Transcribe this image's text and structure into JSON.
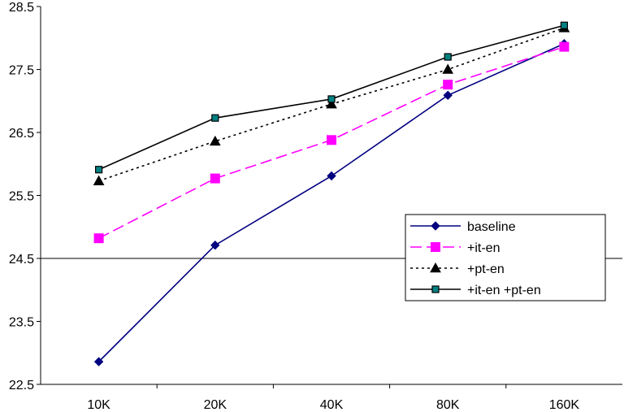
{
  "chart_data": {
    "type": "line",
    "categories": [
      "10K",
      "20K",
      "40K",
      "80K",
      "160K"
    ],
    "ylim": [
      22.5,
      28.5
    ],
    "yticks": [
      "22.5",
      "23.5",
      "24.5",
      "25.5",
      "26.5",
      "27.5",
      "28.5"
    ],
    "ytick_values": [
      22.5,
      23.5,
      24.5,
      25.5,
      26.5,
      27.5,
      28.5
    ],
    "grid": {
      "y": [
        24.5
      ]
    },
    "legend": {
      "position": "right"
    },
    "series": [
      {
        "name": "baseline",
        "values": [
          22.86,
          24.71,
          25.81,
          27.09,
          27.91
        ],
        "color": "#000080",
        "dash": "solid",
        "marker": "diamond"
      },
      {
        "name": "+it-en",
        "values": [
          24.82,
          25.77,
          26.38,
          27.26,
          27.86
        ],
        "color": "#FF00FF",
        "dash": "long-dash",
        "marker": "square"
      },
      {
        "name": "+pt-en",
        "values": [
          25.73,
          26.36,
          26.95,
          27.5,
          28.16
        ],
        "color": "#000000",
        "dash": "dotted",
        "marker": "triangle"
      },
      {
        "name": "+it-en +pt-en",
        "values": [
          25.91,
          26.73,
          27.03,
          27.7,
          28.2
        ],
        "color": "#000000",
        "dash": "solid",
        "marker": "small-square"
      }
    ]
  }
}
